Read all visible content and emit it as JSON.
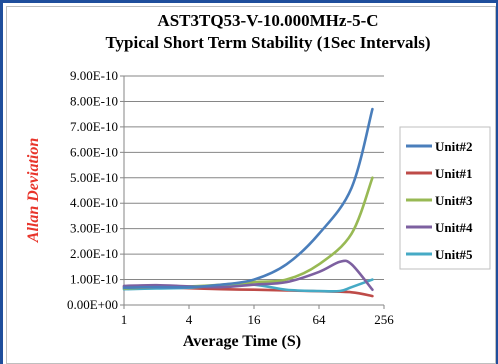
{
  "chart_data": {
    "type": "line",
    "title": "AST3TQ53-V-10.000MHz-5-C",
    "subtitle": "Typical Short Term Stability (1Sec Intervals)",
    "xlabel": "Average Time (S)",
    "ylabel": "Allan Deviation",
    "x_scale": "log2",
    "xlim": [
      1,
      256
    ],
    "ylim": [
      0,
      9e-10
    ],
    "x_ticks": [
      1,
      4,
      16,
      64,
      256
    ],
    "x_tick_labels": [
      "1",
      "4",
      "16",
      "64",
      "256"
    ],
    "y_ticks": [
      0,
      1e-10,
      2e-10,
      3e-10,
      4e-10,
      5e-10,
      6e-10,
      7e-10,
      8e-10,
      9e-10
    ],
    "y_tick_labels": [
      "0.00E+00",
      "1.00E-10",
      "2.00E-10",
      "3.00E-10",
      "4.00E-10",
      "5.00E-10",
      "6.00E-10",
      "7.00E-10",
      "8.00E-10",
      "9.00E-10"
    ],
    "grid": {
      "y": true,
      "x": false
    },
    "legend_position": "right",
    "series": [
      {
        "name": "Unit#2",
        "color": "#4a7ebb",
        "x": [
          1,
          2,
          4,
          8,
          16,
          32,
          64,
          128,
          200
        ],
        "y": [
          6.8e-11,
          7e-11,
          7e-11,
          8e-11,
          1e-10,
          1.6e-10,
          2.8e-10,
          4.6e-10,
          7.7e-10
        ]
      },
      {
        "name": "Unit#1",
        "color": "#be4b48",
        "x": [
          1,
          2,
          4,
          8,
          16,
          32,
          64,
          128,
          200
        ],
        "y": [
          7.2e-11,
          7e-11,
          6.6e-11,
          6.2e-11,
          6e-11,
          5.7e-11,
          5.4e-11,
          5e-11,
          3.5e-11
        ]
      },
      {
        "name": "Unit#3",
        "color": "#98b954",
        "x": [
          1,
          2,
          4,
          8,
          16,
          32,
          64,
          128,
          200
        ],
        "y": [
          6.5e-11,
          7e-11,
          7.3e-11,
          8e-11,
          9e-11,
          1e-10,
          1.6e-10,
          2.8e-10,
          5e-10
        ]
      },
      {
        "name": "Unit#4",
        "color": "#7d60a0",
        "x": [
          1,
          2,
          4,
          8,
          16,
          32,
          64,
          100,
          128,
          200
        ],
        "y": [
          7.5e-11,
          7.8e-11,
          7.3e-11,
          7e-11,
          8e-11,
          9e-11,
          1.3e-10,
          1.7e-10,
          1.6e-10,
          6e-11
        ]
      },
      {
        "name": "Unit#5",
        "color": "#46aac5",
        "x": [
          1,
          2,
          4,
          8,
          16,
          32,
          64,
          100,
          128,
          200
        ],
        "y": [
          6.2e-11,
          6.5e-11,
          6.8e-11,
          7.8e-11,
          8e-11,
          6e-11,
          5.5e-11,
          5.5e-11,
          7e-11,
          1e-10
        ]
      }
    ],
    "colors": {
      "ylabel": "#e8342a",
      "border": "#1f4e9c",
      "grid": "#868686"
    }
  }
}
